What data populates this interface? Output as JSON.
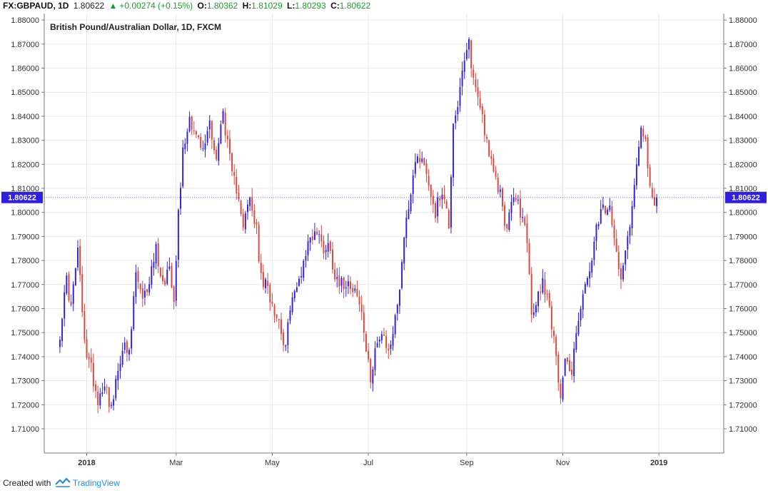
{
  "header": {
    "symbol": "FX:GBPAUD, 1D",
    "price": "1.80622",
    "change": "+0.00274 (+0.15%)",
    "o_label": "O:",
    "o_value": "1.80362",
    "h_label": "H:",
    "h_value": "1.81029",
    "l_label": "L:",
    "l_value": "1.80293",
    "c_label": "C:",
    "c_value": "1.80622"
  },
  "footer": {
    "created_with": "Created with",
    "brand": "TradingView"
  },
  "colors": {
    "up": "#2f1fe0",
    "down": "#e0453c",
    "grid": "#e3e9ef",
    "axis": "#777777",
    "badge": "#2f1fe0"
  },
  "icons": {
    "change": "triangle-up-icon",
    "brand": "tradingview-logo-icon"
  },
  "chart_data": {
    "type": "candlestick",
    "title": "British Pound/Australian Dollar, 1D, FXCM",
    "ylim": [
      1.7,
      1.88
    ],
    "y_ticks": [
      "1.71000",
      "1.72000",
      "1.73000",
      "1.74000",
      "1.75000",
      "1.76000",
      "1.77000",
      "1.78000",
      "1.79000",
      "1.80000",
      "1.81000",
      "1.82000",
      "1.83000",
      "1.84000",
      "1.85000",
      "1.86000",
      "1.87000",
      "1.88000"
    ],
    "x_ticks": [
      {
        "label": "2018",
        "bold": true,
        "index": 12
      },
      {
        "label": "Mar",
        "bold": false,
        "index": 52
      },
      {
        "label": "May",
        "bold": false,
        "index": 95
      },
      {
        "label": "Jul",
        "bold": false,
        "index": 138
      },
      {
        "label": "Sep",
        "bold": false,
        "index": 182
      },
      {
        "label": "Nov",
        "bold": false,
        "index": 225
      },
      {
        "label": "2019",
        "bold": true,
        "index": 268
      }
    ],
    "last_price": "1.80622",
    "last_value": 1.80622,
    "index_range": [
      -7,
      297
    ],
    "anchors": [
      [
        0,
        1.75
      ],
      [
        3,
        1.772
      ],
      [
        5,
        1.76
      ],
      [
        8,
        1.785
      ],
      [
        11,
        1.745
      ],
      [
        14,
        1.735
      ],
      [
        17,
        1.722
      ],
      [
        20,
        1.73
      ],
      [
        23,
        1.718
      ],
      [
        25,
        1.728
      ],
      [
        28,
        1.745
      ],
      [
        31,
        1.74
      ],
      [
        34,
        1.775
      ],
      [
        37,
        1.762
      ],
      [
        40,
        1.772
      ],
      [
        43,
        1.785
      ],
      [
        46,
        1.77
      ],
      [
        49,
        1.778
      ],
      [
        51,
        1.765
      ],
      [
        53,
        1.8
      ],
      [
        55,
        1.825
      ],
      [
        58,
        1.84
      ],
      [
        61,
        1.832
      ],
      [
        64,
        1.825
      ],
      [
        67,
        1.838
      ],
      [
        70,
        1.822
      ],
      [
        73,
        1.842
      ],
      [
        75,
        1.828
      ],
      [
        77,
        1.815
      ],
      [
        80,
        1.808
      ],
      [
        82,
        1.795
      ],
      [
        85,
        1.805
      ],
      [
        88,
        1.792
      ],
      [
        90,
        1.772
      ],
      [
        93,
        1.768
      ],
      [
        96,
        1.76
      ],
      [
        99,
        1.752
      ],
      [
        101,
        1.742
      ],
      [
        103,
        1.762
      ],
      [
        106,
        1.768
      ],
      [
        109,
        1.78
      ],
      [
        112,
        1.79
      ],
      [
        115,
        1.792
      ],
      [
        118,
        1.785
      ],
      [
        120,
        1.787
      ],
      [
        123,
        1.775
      ],
      [
        126,
        1.77
      ],
      [
        129,
        1.772
      ],
      [
        132,
        1.768
      ],
      [
        135,
        1.758
      ],
      [
        137,
        1.742
      ],
      [
        139,
        1.73
      ],
      [
        141,
        1.745
      ],
      [
        144,
        1.748
      ],
      [
        147,
        1.742
      ],
      [
        150,
        1.755
      ],
      [
        152,
        1.77
      ],
      [
        154,
        1.79
      ],
      [
        157,
        1.81
      ],
      [
        160,
        1.825
      ],
      [
        163,
        1.82
      ],
      [
        166,
        1.808
      ],
      [
        168,
        1.8
      ],
      [
        171,
        1.81
      ],
      [
        174,
        1.795
      ],
      [
        176,
        1.838
      ],
      [
        178,
        1.845
      ],
      [
        181,
        1.862
      ],
      [
        183,
        1.87
      ],
      [
        185,
        1.855
      ],
      [
        188,
        1.845
      ],
      [
        191,
        1.83
      ],
      [
        194,
        1.815
      ],
      [
        197,
        1.808
      ],
      [
        200,
        1.792
      ],
      [
        203,
        1.808
      ],
      [
        206,
        1.8
      ],
      [
        209,
        1.79
      ],
      [
        211,
        1.755
      ],
      [
        213,
        1.762
      ],
      [
        216,
        1.772
      ],
      [
        219,
        1.762
      ],
      [
        222,
        1.738
      ],
      [
        224,
        1.725
      ],
      [
        226,
        1.74
      ],
      [
        229,
        1.732
      ],
      [
        231,
        1.752
      ],
      [
        234,
        1.765
      ],
      [
        237,
        1.775
      ],
      [
        240,
        1.792
      ],
      [
        243,
        1.802
      ],
      [
        246,
        1.8
      ],
      [
        248,
        1.788
      ],
      [
        251,
        1.775
      ],
      [
        253,
        1.785
      ],
      [
        256,
        1.802
      ],
      [
        258,
        1.82
      ],
      [
        260,
        1.838
      ],
      [
        262,
        1.83
      ],
      [
        264,
        1.808
      ],
      [
        266,
        1.802
      ],
      [
        267,
        1.806
      ]
    ]
  }
}
